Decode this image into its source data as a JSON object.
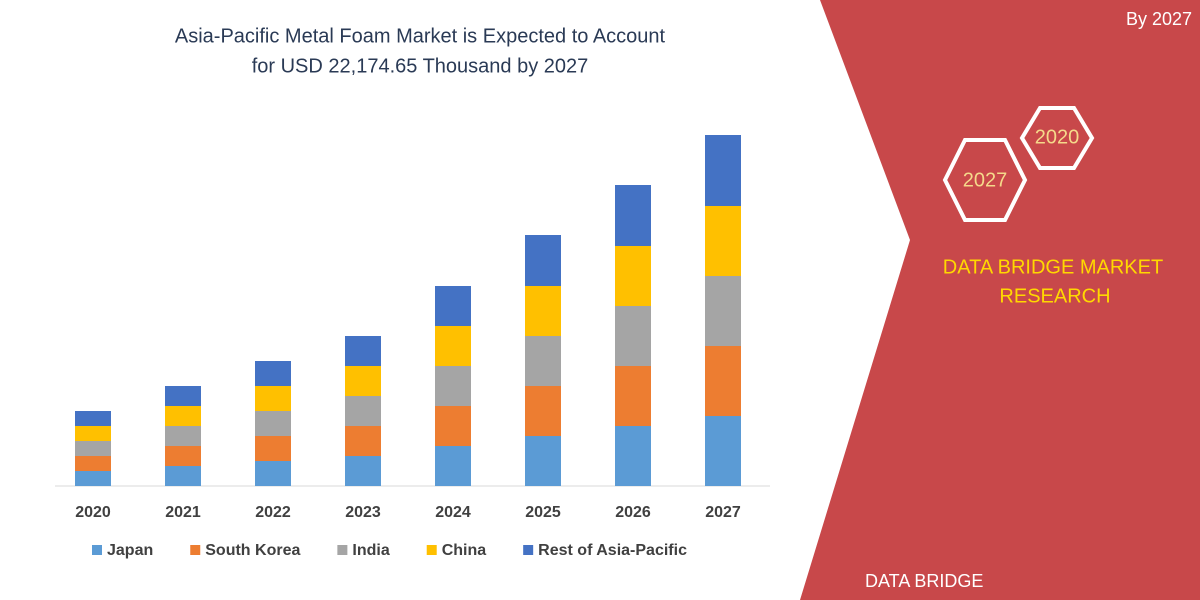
{
  "chart_data": {
    "type": "stacked_bar",
    "title_lines": [
      "Asia-Pacific Metal Foam Market is Expected to Account",
      "for USD 22,174.65 Thousand by 2027"
    ],
    "categories": [
      "2020",
      "2021",
      "2022",
      "2023",
      "2024",
      "2025",
      "2026",
      "2027"
    ],
    "series": [
      {
        "name": "Japan",
        "color": "#5b9bd5",
        "values": [
          15,
          20,
          25,
          30,
          40,
          50,
          60,
          70
        ]
      },
      {
        "name": "South Korea",
        "color": "#ed7d31",
        "values": [
          15,
          20,
          25,
          30,
          40,
          50,
          60,
          70
        ]
      },
      {
        "name": "India",
        "color": "#a5a5a5",
        "values": [
          15,
          20,
          25,
          30,
          40,
          50,
          60,
          70
        ]
      },
      {
        "name": "China",
        "color": "#ffc000",
        "values": [
          15,
          20,
          25,
          30,
          40,
          50,
          60,
          70
        ]
      },
      {
        "name": "Rest of Asia-Pacific",
        "color": "#4472c4",
        "values": [
          15,
          20,
          25,
          30,
          40,
          51,
          61,
          71
        ]
      }
    ],
    "ylim": [
      0,
      351
    ]
  },
  "panel": {
    "corner_text": "By 2027",
    "hex_small": "2020",
    "hex_large": "2027",
    "brand_lines": [
      "DATA BRIDGE MARKET",
      "RESEARCH"
    ],
    "logo_text": "DATA BRIDGE"
  }
}
